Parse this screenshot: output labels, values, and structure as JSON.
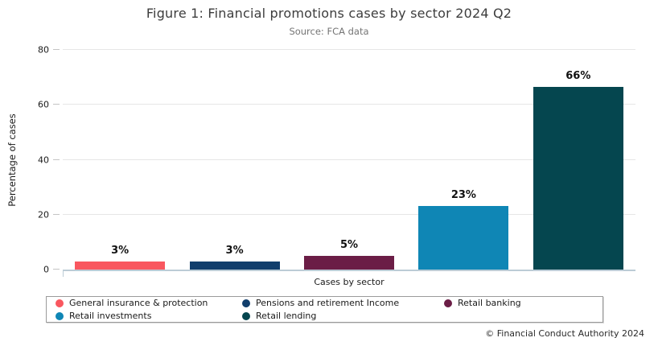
{
  "page": {
    "footer": "© Financial Conduct Authority 2024"
  },
  "chart_data": {
    "type": "bar",
    "title": "Figure 1: Financial promotions cases by sector 2024 Q2",
    "subtitle": "Source: FCA data",
    "xlabel": "Cases by sector",
    "ylabel": "Percentage of cases",
    "ylim": [
      0,
      80
    ],
    "yticks": [
      0,
      20,
      40,
      60,
      80
    ],
    "grid": true,
    "legend_position": "bottom",
    "categories": [
      "General insurance & protection",
      "Pensions and retirement Income",
      "Retail banking",
      "Retail investments",
      "Retail lending"
    ],
    "values": [
      3,
      3,
      5,
      23,
      66
    ],
    "bar_labels": [
      "3%",
      "3%",
      "5%",
      "23%",
      "66%"
    ],
    "colors": [
      "#f9575f",
      "#113e6c",
      "#6b1d46",
      "#0f86b5",
      "#05464f"
    ]
  }
}
